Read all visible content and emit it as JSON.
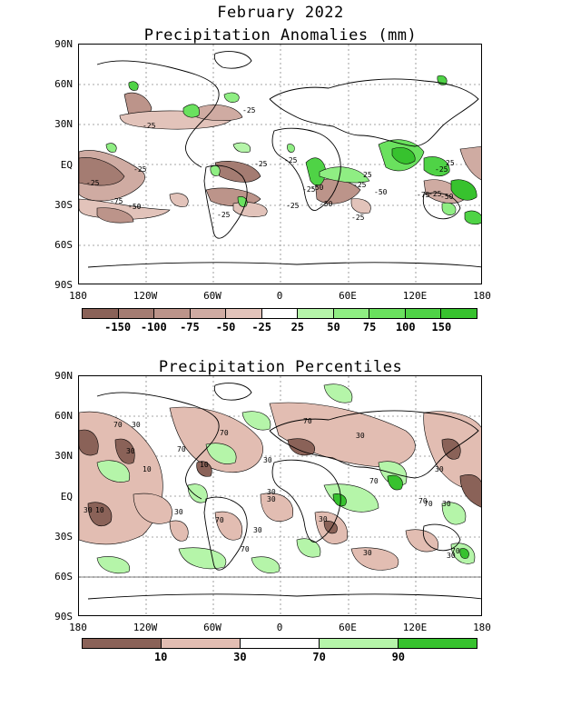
{
  "header": {
    "title": "February 2022"
  },
  "panel1": {
    "title": "Precipitation Anomalies (mm)",
    "lat_labels": [
      "90N",
      "60N",
      "30N",
      "EQ",
      "30S",
      "60S",
      "90S"
    ],
    "lon_labels": [
      "180",
      "120W",
      "60W",
      "0",
      "60E",
      "120E",
      "180"
    ],
    "colorbar": {
      "colors": [
        "#8a6258",
        "#a47c72",
        "#bc948a",
        "#cfaba2",
        "#e2c3ba",
        "#ffffff",
        "#b5f5a9",
        "#8fee83",
        "#6ae15e",
        "#4fd346",
        "#37c22e"
      ],
      "labels": [
        "-150",
        "-100",
        "-75",
        "-50",
        "-25",
        "25",
        "50",
        "75",
        "100",
        "150"
      ]
    },
    "contour_labels": [
      "-25",
      "-25",
      "-25",
      "-25",
      "-25",
      "-25",
      "-50",
      "-75",
      "-25",
      "-25",
      "25",
      "-25",
      "-25",
      "-50",
      "-50",
      "-75",
      "-25",
      "-25",
      "-25",
      "-50",
      "-50",
      "25"
    ]
  },
  "panel2": {
    "title": "Precipitation Percentiles",
    "lat_labels": [
      "90N",
      "60N",
      "30N",
      "EQ",
      "30S",
      "60S",
      "90S"
    ],
    "lon_labels": [
      "180",
      "120W",
      "60W",
      "0",
      "60E",
      "120E",
      "180"
    ],
    "colorbar": {
      "colors": [
        "#8a6258",
        "#e2bdb2",
        "#ffffff",
        "#b5f5a9",
        "#37c22e"
      ],
      "labels": [
        "10",
        "30",
        "70",
        "90"
      ]
    },
    "contour_labels": [
      "70",
      "30",
      "10",
      "30",
      "70",
      "70",
      "10",
      "70",
      "30",
      "30",
      "70",
      "30",
      "30",
      "10",
      "30",
      "30",
      "70",
      "70",
      "30",
      "70",
      "30",
      "70",
      "30",
      "30",
      "30",
      "30",
      "70"
    ]
  }
}
